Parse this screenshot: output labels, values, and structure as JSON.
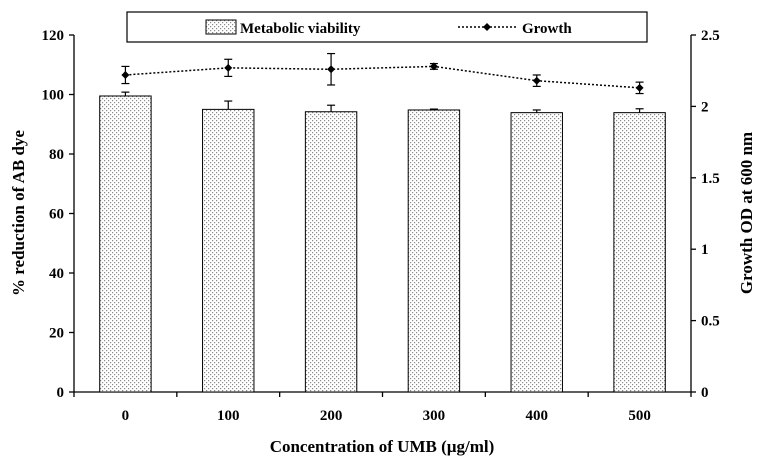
{
  "chart_data": {
    "type": "bar",
    "title": "",
    "categories": [
      "0",
      "100",
      "200",
      "300",
      "400",
      "500"
    ],
    "xlabel": "Concentration of UMB (µg/ml)",
    "ylabel": "% reduction of AB dye",
    "y2label": "Growth OD at 600 nm",
    "ylim": [
      0,
      120
    ],
    "yticks": [
      "0",
      "20",
      "40",
      "60",
      "80",
      "100",
      "120"
    ],
    "y2lim": [
      0,
      2.5
    ],
    "y2ticks": [
      "0",
      "0.5",
      "1",
      "1.5",
      "2",
      "2.5"
    ],
    "grid": false,
    "legend_position": "top",
    "series": [
      {
        "name": "Metabolic viability",
        "kind": "bar",
        "axis": "left",
        "values": [
          99.5,
          95.0,
          94.2,
          94.8,
          93.9,
          93.9
        ],
        "errors": [
          1.3,
          2.8,
          2.2,
          0.3,
          0.9,
          1.3
        ]
      },
      {
        "name": "Growth",
        "kind": "line",
        "axis": "right",
        "values": [
          2.22,
          2.27,
          2.26,
          2.28,
          2.18,
          2.13
        ],
        "errors": [
          0.06,
          0.06,
          0.11,
          0.02,
          0.04,
          0.04
        ]
      }
    ]
  }
}
